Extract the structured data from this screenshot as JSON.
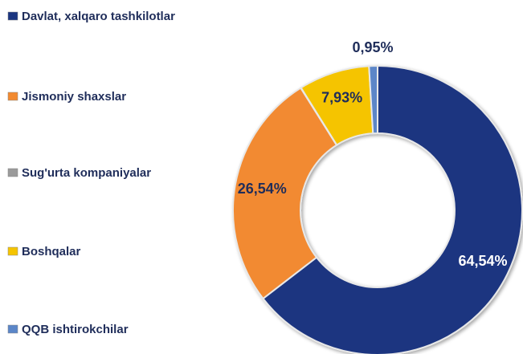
{
  "chart_data": {
    "type": "donut",
    "categories": [
      "Davlat, xalqaro tashkilotlar",
      "Jismoniy shaxslar",
      "Sug'urta kompaniyalar",
      "Boshqalar",
      "QQB ishtirokchilar"
    ],
    "values": [
      64.54,
      26.54,
      0.04,
      7.93,
      0.95
    ],
    "value_labels": [
      "64,54%",
      "26,54%",
      null,
      "7,93%",
      "0,95%"
    ],
    "colors": [
      "#1b3580",
      "#f28a30",
      "#9a9a9a",
      "#f5c400",
      "#5b86c8"
    ],
    "legend": "left"
  }
}
